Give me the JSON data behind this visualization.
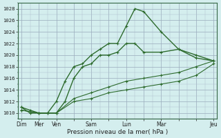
{
  "title": "",
  "xlabel": "Pression niveau de la mer( hPa )",
  "ylabel": "",
  "background_color": "#d4eeee",
  "plot_bg_color": "#d4eeee",
  "grid_color": "#aabbcc",
  "line_color": "#2d6b2d",
  "xtick_labels": [
    "Dim",
    "Mer",
    "Ven",
    "",
    "Sam",
    "",
    "Lun",
    "",
    "Mar",
    "",
    "",
    "Jeu"
  ],
  "xtick_positions": [
    0,
    1,
    2,
    3,
    4,
    5,
    6,
    7,
    8,
    9,
    10,
    11
  ],
  "ylim": [
    1009,
    1029
  ],
  "xlim": [
    -0.2,
    11.2
  ],
  "ytick_vals": [
    1010,
    1012,
    1014,
    1016,
    1018,
    1020,
    1022,
    1024,
    1026,
    1028
  ],
  "series": [
    {
      "x": [
        0,
        0.5,
        1,
        1.5,
        2,
        2.5,
        3,
        3.5,
        4,
        4.5,
        5,
        5.5,
        6,
        6.5,
        7,
        8,
        9,
        10,
        11
      ],
      "y": [
        1011,
        1010.5,
        1010,
        1010,
        1012,
        1015.5,
        1018,
        1018.5,
        1020,
        1021,
        1022,
        1022,
        1025,
        1028,
        1027.5,
        1024,
        1021,
        1020,
        1019
      ]
    },
    {
      "x": [
        0,
        0.5,
        1,
        1.5,
        2,
        2.5,
        3,
        3.5,
        4,
        4.5,
        5,
        5.5,
        6,
        6.5,
        7,
        8,
        9,
        10,
        11
      ],
      "y": [
        1011,
        1010,
        1010,
        1010,
        1010,
        1012,
        1016,
        1018,
        1018.5,
        1020,
        1020,
        1020.5,
        1022,
        1022,
        1020.5,
        1020.5,
        1021,
        1019.5,
        1019
      ]
    },
    {
      "x": [
        0,
        1,
        2,
        3,
        4,
        5,
        6,
        7,
        8,
        9,
        10,
        11
      ],
      "y": [
        1010.5,
        1010,
        1010,
        1012.5,
        1013.5,
        1014.5,
        1015.5,
        1016,
        1016.5,
        1017,
        1018,
        1019
      ]
    },
    {
      "x": [
        0,
        1,
        2,
        3,
        4,
        5,
        6,
        7,
        8,
        9,
        10,
        11
      ],
      "y": [
        1010.5,
        1010,
        1010,
        1012,
        1012.5,
        1013.5,
        1014,
        1014.5,
        1015,
        1015.5,
        1016.5,
        1018.5
      ]
    }
  ]
}
